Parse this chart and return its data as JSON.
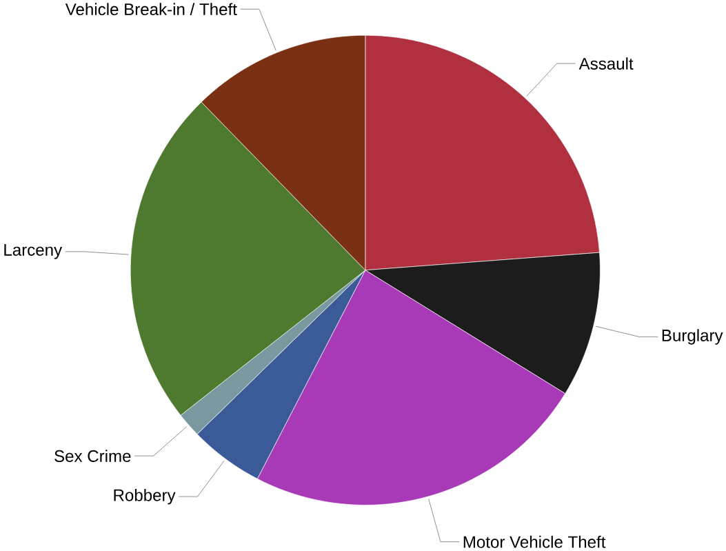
{
  "chart_data": {
    "type": "pie",
    "categories": [
      "Assault",
      "Burglary",
      "Motor Vehicle Theft",
      "Robbery",
      "Sex Crime",
      "Larceny",
      "Vehicle Break-in / Theft"
    ],
    "values": [
      23.8,
      10,
      23.8,
      5.1,
      1.7,
      23.3,
      12.3
    ],
    "colors": [
      "#b03040",
      "#1c1c1c",
      "#a83ab8",
      "#3a5a98",
      "#7a98a0",
      "#4e7a30",
      "#7a3012"
    ]
  }
}
